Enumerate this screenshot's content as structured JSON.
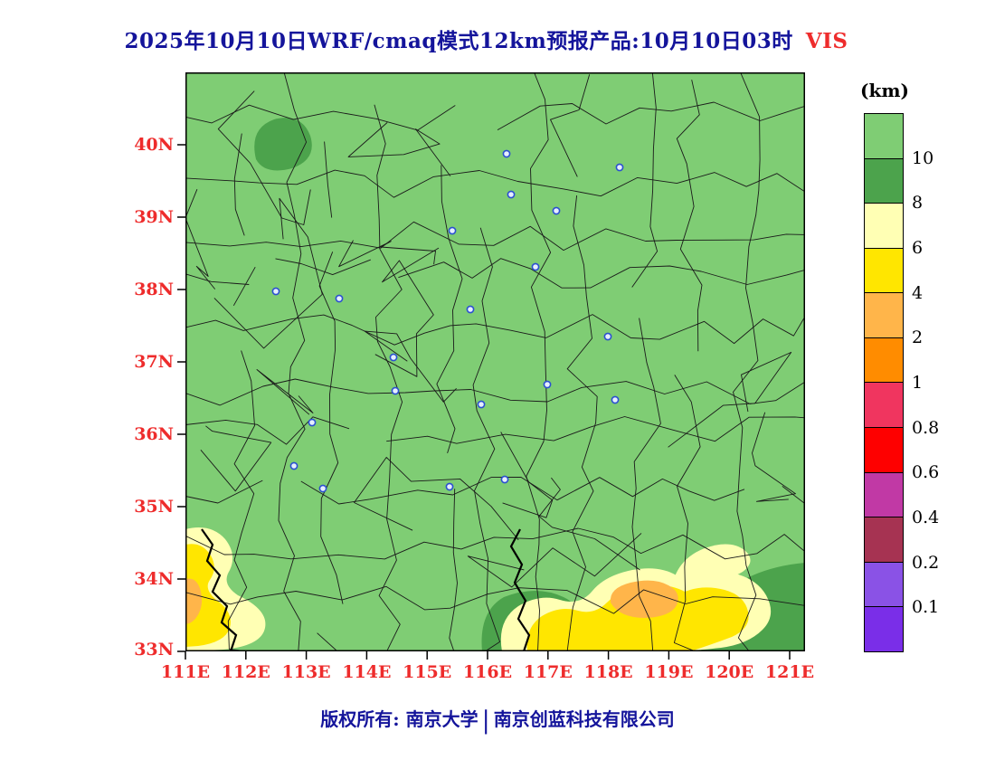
{
  "header": {
    "title": "2025年10月10日WRF/cmaq模式12km预报产品:10月10日03时",
    "variable": "VIS"
  },
  "axes": {
    "lat_labels": [
      "40N",
      "39N",
      "38N",
      "37N",
      "36N",
      "35N",
      "34N",
      "33N"
    ],
    "lon_labels": [
      "111E",
      "112E",
      "113E",
      "114E",
      "115E",
      "116E",
      "117E",
      "118E",
      "119E",
      "120E",
      "121E"
    ]
  },
  "colorbar": {
    "unit": "(km)",
    "tick_labels": [
      "10",
      "8",
      "6",
      "4",
      "2",
      "1",
      "0.8",
      "0.6",
      "0.4",
      "0.2",
      "0.1"
    ],
    "colors_top_to_bottom": [
      "#7FCD74",
      "#4CA34C",
      "#FFFFB4",
      "#FFE600",
      "#FFB54A",
      "#FF8C00",
      "#F0355F",
      "#FE0000",
      "#C139A5",
      "#A63352",
      "#8A52E6",
      "#7A2EE8"
    ]
  },
  "footer": {
    "copyright_left": "版权所有: 南京大学",
    "divider": "|",
    "copyright_right": "南京创蓝科技有限公司"
  },
  "colors": {
    "title_text": "#14149B",
    "axis_text": "#EE2C2C",
    "variable_text": "#EE2C2C",
    "map_fill": "#7FCD74",
    "boundary_lines": "#1A1A1A",
    "city_marker": "#2B4FD0"
  }
}
